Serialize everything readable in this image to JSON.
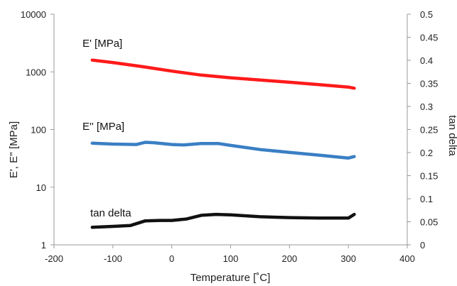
{
  "chart_data": {
    "type": "line",
    "xlabel": "Temperature [˚C]",
    "ylabel_left": "E', E'' [MPa]",
    "ylabel_right": "tan delta",
    "xlim": [
      -200,
      400
    ],
    "ylim_left": [
      1,
      10000
    ],
    "ylim_right": [
      0,
      0.5
    ],
    "yscale_left": "log",
    "yscale_right": "linear",
    "grid": false,
    "x_ticks": [
      "-200",
      "-100",
      "0",
      "100",
      "200",
      "300",
      "400"
    ],
    "y_left_ticks": [
      "1",
      "10",
      "100",
      "1000",
      "10000"
    ],
    "y_right_ticks": [
      "0",
      "0.05",
      "0.1",
      "0.15",
      "0.2",
      "0.25",
      "0.3",
      "0.35",
      "0.4",
      "0.45",
      "0.5"
    ],
    "series": [
      {
        "name": "E' [MPa]",
        "axis": "left",
        "color": "#ff1a1a",
        "x": [
          -135,
          -100,
          -50,
          0,
          50,
          100,
          150,
          200,
          250,
          300,
          310
        ],
        "y": [
          1600,
          1450,
          1230,
          1030,
          880,
          790,
          720,
          660,
          600,
          545,
          520
        ]
      },
      {
        "name": "E'' [MPa]",
        "axis": "left",
        "color": "#3a7fc4",
        "x": [
          -135,
          -100,
          -60,
          -45,
          -30,
          0,
          20,
          50,
          80,
          100,
          150,
          200,
          250,
          300,
          310
        ],
        "y": [
          58,
          56,
          55,
          60,
          59,
          55,
          54,
          57,
          57,
          53,
          45,
          40,
          36,
          32,
          34
        ]
      },
      {
        "name": "tan delta",
        "axis": "right",
        "color": "#111111",
        "x": [
          -135,
          -100,
          -70,
          -55,
          -45,
          -20,
          0,
          25,
          50,
          75,
          100,
          150,
          200,
          250,
          300,
          305,
          310
        ],
        "y": [
          0.038,
          0.04,
          0.042,
          0.048,
          0.052,
          0.053,
          0.053,
          0.056,
          0.064,
          0.066,
          0.065,
          0.061,
          0.059,
          0.058,
          0.058,
          0.062,
          0.066
        ]
      }
    ]
  }
}
